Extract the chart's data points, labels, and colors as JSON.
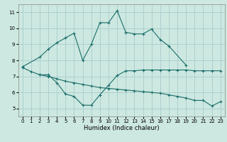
{
  "xlabel": "Humidex (Indice chaleur)",
  "bg_color": "#cce8e0",
  "grid_color": "#aacccc",
  "line_color": "#1a6e6a",
  "xlim": [
    -0.5,
    23.5
  ],
  "ylim": [
    4.5,
    11.5
  ],
  "xticks": [
    0,
    1,
    2,
    3,
    4,
    5,
    6,
    7,
    8,
    9,
    10,
    11,
    12,
    13,
    14,
    15,
    16,
    17,
    18,
    19,
    20,
    21,
    22,
    23
  ],
  "yticks": [
    5,
    6,
    7,
    8,
    9,
    10,
    11
  ],
  "line1_x": [
    0,
    2,
    3,
    4,
    5,
    6,
    7,
    8,
    9,
    10,
    11,
    12,
    13,
    14,
    15,
    16,
    17,
    19
  ],
  "line1_y": [
    7.6,
    8.2,
    8.7,
    9.1,
    9.4,
    9.7,
    8.0,
    9.0,
    10.35,
    10.35,
    11.1,
    9.75,
    9.65,
    9.65,
    9.95,
    9.3,
    8.9,
    7.7
  ],
  "line2_x": [
    2,
    3,
    4,
    5,
    6,
    7,
    8,
    9,
    10,
    11,
    12,
    13,
    14,
    15,
    16,
    17,
    18,
    19,
    20,
    21,
    22,
    23
  ],
  "line2_y": [
    7.1,
    7.1,
    6.6,
    5.9,
    5.75,
    5.2,
    5.2,
    5.85,
    6.45,
    7.05,
    7.35,
    7.35,
    7.4,
    7.4,
    7.4,
    7.4,
    7.4,
    7.4,
    7.35,
    7.35,
    7.35,
    7.35
  ],
  "line3_x": [
    0,
    1,
    2,
    3,
    4,
    5,
    6,
    7,
    8,
    9,
    10,
    11,
    12,
    13,
    14,
    15,
    16,
    17,
    18,
    19,
    20,
    21,
    22,
    23
  ],
  "line3_y": [
    7.55,
    7.3,
    7.1,
    7.0,
    6.85,
    6.7,
    6.6,
    6.5,
    6.4,
    6.3,
    6.25,
    6.2,
    6.15,
    6.1,
    6.05,
    6.0,
    5.95,
    5.85,
    5.75,
    5.65,
    5.5,
    5.5,
    5.15,
    5.42
  ]
}
